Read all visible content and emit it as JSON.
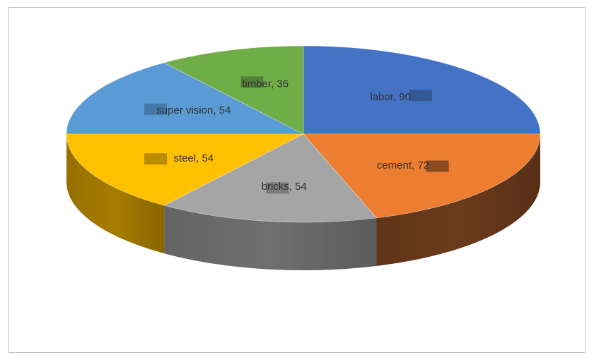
{
  "chart_data": {
    "type": "pie",
    "style": "3d",
    "categories": [
      "labor",
      "cement",
      "bricks",
      "steel",
      "super vision",
      "timber"
    ],
    "values": [
      90,
      72,
      54,
      54,
      54,
      36
    ],
    "labels": [
      "labor, 90",
      "cement, 72",
      "bricks, 54",
      "steel, 54",
      "super vision, 54",
      "timber, 36"
    ],
    "colors": [
      "#4472c4",
      "#ed7d31",
      "#a5a5a5",
      "#ffc000",
      "#5b9bd5",
      "#70ad47"
    ],
    "side_colors": [
      "#2f4f87",
      "#6b3a1c",
      "#6f6f6f",
      "#a67c00",
      "#3e6d98",
      "#4a7530"
    ],
    "legend": "none",
    "grid": false
  }
}
